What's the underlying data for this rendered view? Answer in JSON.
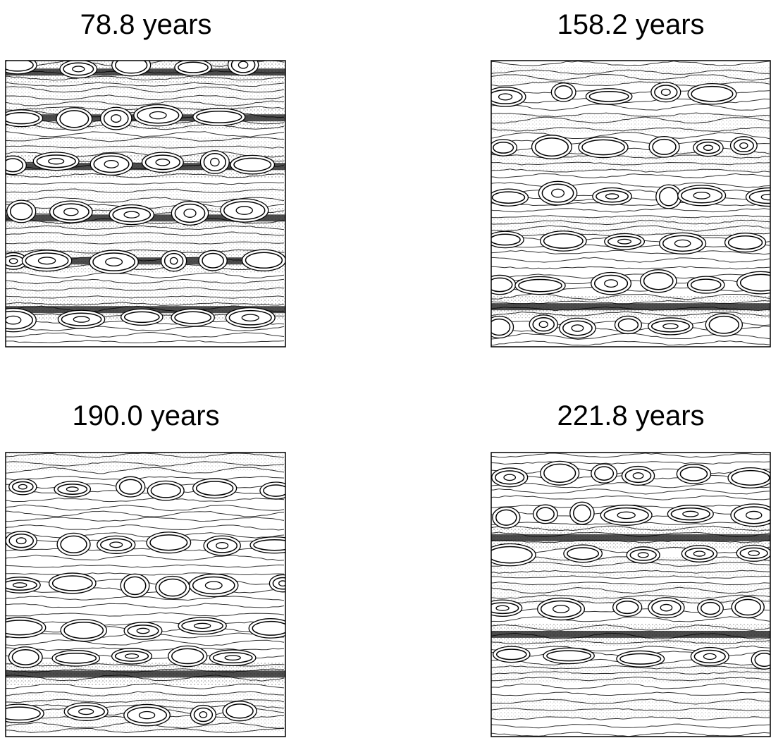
{
  "panels": [
    {
      "title": "78.8 years"
    },
    {
      "title": "158.2 years"
    },
    {
      "title": "190.0 years"
    },
    {
      "title": "221.8 years"
    }
  ]
}
